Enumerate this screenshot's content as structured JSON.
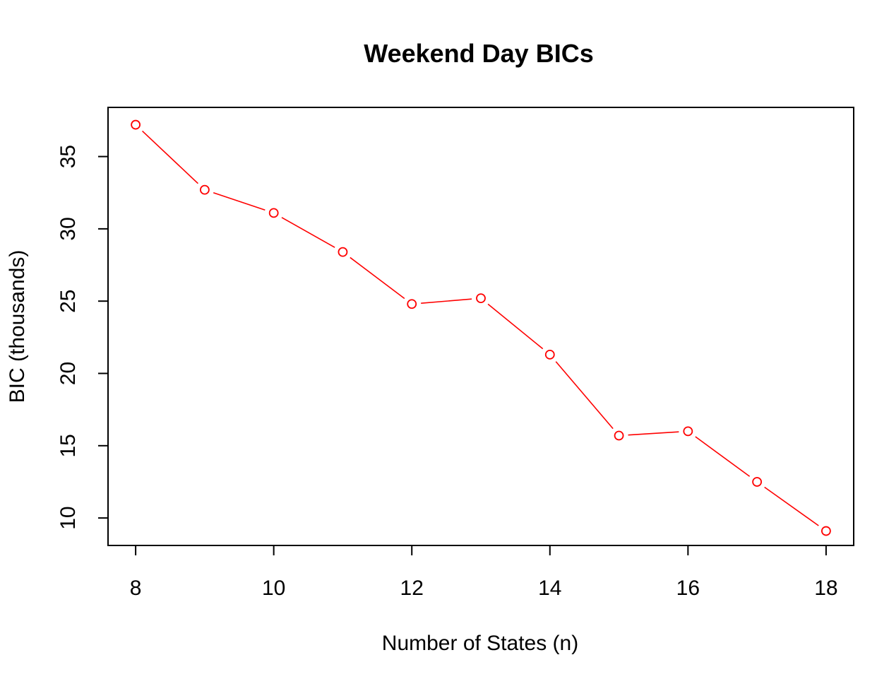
{
  "chart_data": {
    "type": "line",
    "title": "Weekend Day BICs",
    "xlabel": "Number of States (n)",
    "ylabel": "BIC (thousands)",
    "x": [
      8,
      9,
      10,
      11,
      12,
      13,
      14,
      15,
      16,
      17,
      18
    ],
    "series": [
      {
        "values": [
          37.2,
          32.7,
          31.1,
          28.4,
          24.8,
          25.2,
          21.3,
          15.7,
          16.0,
          12.5,
          9.1
        ],
        "color": "#ff0000"
      }
    ],
    "xticks": [
      "8",
      "10",
      "12",
      "14",
      "16",
      "18"
    ],
    "yticks": [
      "10",
      "15",
      "20",
      "25",
      "30",
      "35"
    ],
    "xlim": [
      7.6,
      18.4
    ],
    "ylim": [
      8.1,
      38.4
    ],
    "grid": false,
    "legend": "none"
  }
}
